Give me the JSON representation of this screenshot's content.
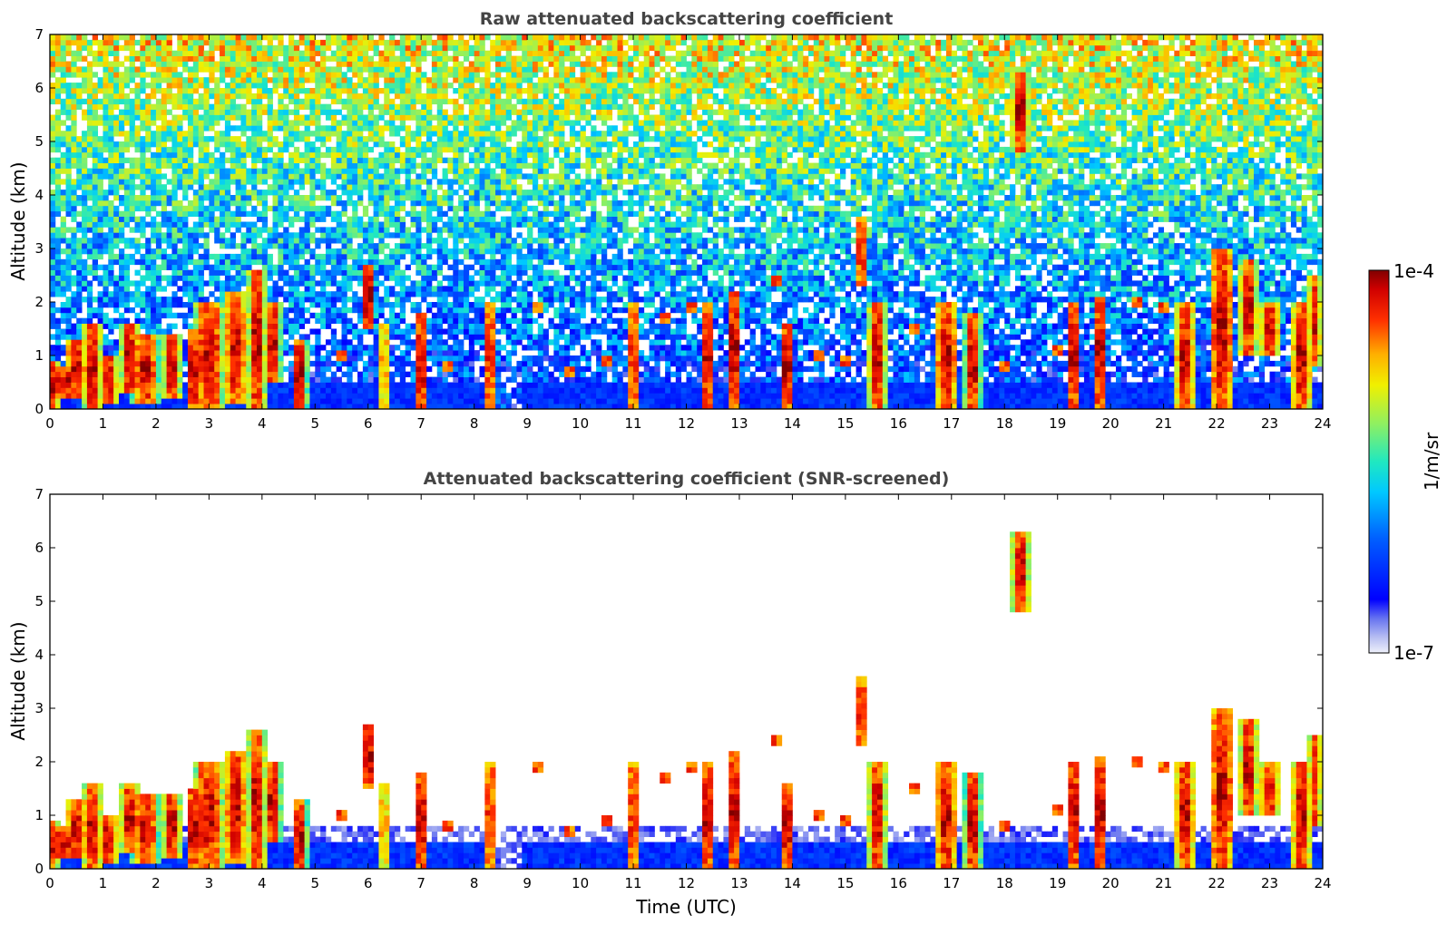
{
  "chart_data": [
    {
      "type": "heatmap",
      "title": "Raw attenuated backscattering coefficient",
      "xlabel": "",
      "ylabel": "Altitude (km)",
      "xlim": [
        0,
        24
      ],
      "ylim": [
        0,
        7
      ],
      "xticks": [
        "0",
        "1",
        "2",
        "3",
        "4",
        "5",
        "6",
        "7",
        "8",
        "9",
        "10",
        "11",
        "12",
        "13",
        "14",
        "15",
        "16",
        "17",
        "18",
        "19",
        "20",
        "21",
        "22",
        "23",
        "24"
      ],
      "yticks": [
        "0",
        "1",
        "2",
        "3",
        "4",
        "5",
        "6",
        "7"
      ],
      "screened": false
    },
    {
      "type": "heatmap",
      "title": "Attenuated backscattering coefficient (SNR-screened)",
      "xlabel": "Time (UTC)",
      "ylabel": "Altitude (km)",
      "xlim": [
        0,
        24
      ],
      "ylim": [
        0,
        7
      ],
      "xticks": [
        "0",
        "1",
        "2",
        "3",
        "4",
        "5",
        "6",
        "7",
        "8",
        "9",
        "10",
        "11",
        "12",
        "13",
        "14",
        "15",
        "16",
        "17",
        "18",
        "19",
        "20",
        "21",
        "22",
        "23",
        "24"
      ],
      "yticks": [
        "0",
        "1",
        "2",
        "3",
        "4",
        "5",
        "6",
        "7"
      ],
      "screened": true
    }
  ],
  "colorbar": {
    "label": "1/m/sr",
    "max_label": "1e-4",
    "min_label": "1e-7",
    "scale": "log",
    "colormap": "jet"
  },
  "features": {
    "clouds": [
      [
        0.0,
        0.35,
        0.0,
        0.9
      ],
      [
        0.25,
        0.5,
        0.2,
        0.8
      ],
      [
        0.5,
        0.45,
        0.2,
        1.3
      ],
      [
        0.8,
        0.35,
        0.0,
        1.6
      ],
      [
        1.1,
        0.4,
        0.1,
        1.0
      ],
      [
        1.5,
        0.35,
        0.3,
        1.6
      ],
      [
        1.8,
        0.5,
        0.1,
        1.4
      ],
      [
        2.3,
        0.35,
        0.2,
        1.4
      ],
      [
        2.7,
        0.3,
        0.0,
        1.5
      ],
      [
        3.0,
        0.55,
        0.0,
        2.0
      ],
      [
        3.5,
        0.45,
        0.1,
        2.2
      ],
      [
        3.9,
        0.35,
        0.0,
        2.6
      ],
      [
        4.2,
        0.3,
        0.5,
        2.0
      ],
      [
        4.7,
        0.3,
        0.0,
        1.3
      ],
      [
        6.0,
        0.25,
        1.5,
        2.7
      ],
      [
        6.3,
        0.15,
        0.0,
        1.6
      ],
      [
        7.0,
        0.25,
        0.0,
        1.8
      ],
      [
        8.3,
        0.2,
        0.0,
        2.0
      ],
      [
        11.0,
        0.2,
        0.0,
        2.0
      ],
      [
        12.4,
        0.3,
        0.0,
        2.0
      ],
      [
        12.9,
        0.25,
        0.0,
        2.2
      ],
      [
        13.9,
        0.3,
        0.0,
        1.6
      ],
      [
        15.3,
        0.2,
        2.3,
        3.6
      ],
      [
        15.6,
        0.35,
        0.0,
        2.0
      ],
      [
        16.9,
        0.45,
        0.0,
        2.0
      ],
      [
        17.4,
        0.3,
        0.0,
        1.8
      ],
      [
        18.3,
        0.35,
        4.8,
        6.3
      ],
      [
        19.3,
        0.25,
        0.0,
        2.0
      ],
      [
        19.8,
        0.3,
        0.0,
        2.1
      ],
      [
        21.4,
        0.4,
        0.0,
        2.0
      ],
      [
        22.1,
        0.5,
        0.0,
        3.0
      ],
      [
        22.6,
        0.35,
        1.0,
        2.8
      ],
      [
        23.0,
        0.4,
        1.0,
        2.0
      ],
      [
        23.6,
        0.4,
        0.0,
        2.0
      ],
      [
        23.85,
        0.25,
        0.8,
        2.5
      ]
    ],
    "particles": [
      [
        5.5,
        1.0
      ],
      [
        7.5,
        0.8
      ],
      [
        9.8,
        0.7
      ],
      [
        10.5,
        0.9
      ],
      [
        11.6,
        1.7
      ],
      [
        12.1,
        1.9
      ],
      [
        14.5,
        1.0
      ],
      [
        15.0,
        0.9
      ],
      [
        16.3,
        1.5
      ],
      [
        18.0,
        0.8
      ],
      [
        19.0,
        1.1
      ],
      [
        20.5,
        2.0
      ],
      [
        21.0,
        1.9
      ],
      [
        13.7,
        2.4
      ],
      [
        9.2,
        1.9
      ]
    ]
  }
}
